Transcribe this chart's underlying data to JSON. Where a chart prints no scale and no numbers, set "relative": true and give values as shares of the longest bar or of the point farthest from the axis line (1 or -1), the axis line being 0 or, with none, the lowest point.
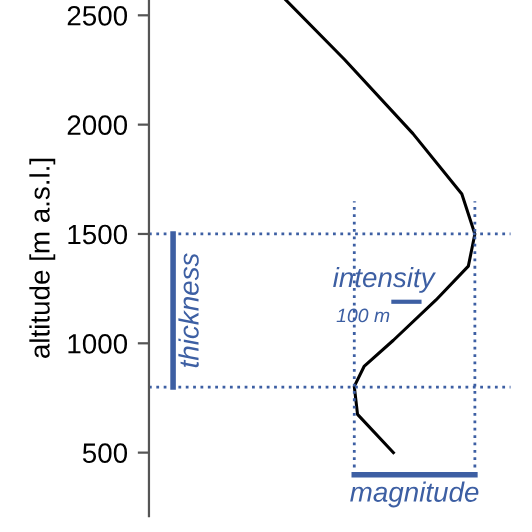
{
  "chart_data": {
    "type": "line",
    "orientation": "horizontal",
    "ylabel": "altitude [m a.s.l.]",
    "relative": true,
    "ylim": [
      210,
      2570
    ],
    "yticks": [
      500,
      1000,
      1500,
      2000,
      2500
    ],
    "series": [
      {
        "color": "#000000",
        "x": [
          2570,
          2298,
          1959,
          1683,
          1500,
          1353,
          1197,
          1014,
          894,
          803,
          675,
          500
        ],
        "values": [
          0.42,
          0.6,
          0.81,
          0.96,
          1.0,
          0.98,
          0.88,
          0.75,
          0.66,
          0.63,
          0.64,
          0.75
        ]
      }
    ],
    "ref_lines": [
      {
        "axis": "y",
        "value": 1500,
        "color": "#3d5fa3",
        "line_style": "dotted"
      },
      {
        "axis": "y",
        "value": 800,
        "color": "#3d5fa3",
        "line_style": "dotted"
      }
    ],
    "annotations": [
      "thickness",
      "intensity",
      "100 m",
      "magnitude"
    ],
    "grid": false
  }
}
